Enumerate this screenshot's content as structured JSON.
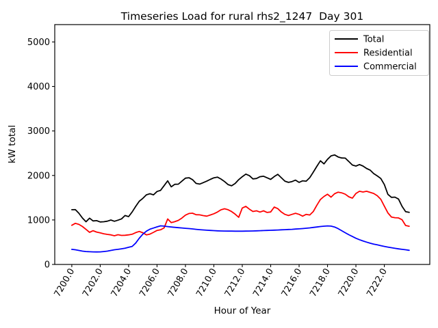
{
  "chart_data": {
    "type": "line",
    "title": "Timeseries Load for rural rhs2_1247  Day 301",
    "xlabel": "Hour of Year",
    "ylabel": "kW total",
    "grid": false,
    "xlim": [
      7198.8,
      7225.2
    ],
    "ylim": [
      0,
      5390
    ],
    "x_tick_values": [
      7200,
      7202,
      7204,
      7206,
      7208,
      7210,
      7212,
      7214,
      7216,
      7218,
      7220,
      7222
    ],
    "x_tick_labels": [
      "7200.0",
      "7202.0",
      "7204.0",
      "7206.0",
      "7208.0",
      "7210.0",
      "7212.0",
      "7214.0",
      "7216.0",
      "7218.0",
      "7220.0",
      "7222.0"
    ],
    "y_tick_values": [
      0,
      1000,
      2000,
      3000,
      4000,
      5000
    ],
    "y_tick_labels": [
      "0",
      "1000",
      "2000",
      "3000",
      "4000",
      "5000"
    ],
    "legend": {
      "position": "upper right",
      "frame_color": "#cccccc"
    },
    "x": [
      7200.0,
      7200.25,
      7200.5,
      7200.75,
      7201.0,
      7201.25,
      7201.5,
      7201.75,
      7202.0,
      7202.25,
      7202.5,
      7202.75,
      7203.0,
      7203.25,
      7203.5,
      7203.75,
      7204.0,
      7204.25,
      7204.5,
      7204.75,
      7205.0,
      7205.25,
      7205.5,
      7205.75,
      7206.0,
      7206.25,
      7206.5,
      7206.75,
      7207.0,
      7207.25,
      7207.5,
      7207.75,
      7208.0,
      7208.25,
      7208.5,
      7208.75,
      7209.0,
      7209.25,
      7209.5,
      7209.75,
      7210.0,
      7210.25,
      7210.5,
      7210.75,
      7211.0,
      7211.25,
      7211.5,
      7211.75,
      7212.0,
      7212.25,
      7212.5,
      7212.75,
      7213.0,
      7213.25,
      7213.5,
      7213.75,
      7214.0,
      7214.25,
      7214.5,
      7214.75,
      7215.0,
      7215.25,
      7215.5,
      7215.75,
      7216.0,
      7216.25,
      7216.5,
      7216.75,
      7217.0,
      7217.25,
      7217.5,
      7217.75,
      7218.0,
      7218.25,
      7218.5,
      7218.75,
      7219.0,
      7219.25,
      7219.5,
      7219.75,
      7220.0,
      7220.25,
      7220.5,
      7220.75,
      7221.0,
      7221.25,
      7221.5,
      7221.75,
      7222.0,
      7222.25,
      7222.5,
      7222.75,
      7223.0,
      7223.25,
      7223.5,
      7223.75
    ],
    "series": [
      {
        "name": "Total",
        "color": "#000000",
        "values": [
          1230,
          1232,
          1150,
          1042,
          960,
          1040,
          978,
          985,
          955,
          960,
          972,
          998,
          970,
          995,
          1025,
          1100,
          1075,
          1180,
          1305,
          1420,
          1485,
          1565,
          1590,
          1565,
          1640,
          1665,
          1770,
          1880,
          1745,
          1802,
          1805,
          1872,
          1940,
          1948,
          1905,
          1822,
          1806,
          1838,
          1872,
          1912,
          1947,
          1962,
          1920,
          1862,
          1795,
          1768,
          1820,
          1905,
          1972,
          2030,
          1995,
          1922,
          1932,
          1972,
          1982,
          1947,
          1912,
          1975,
          2025,
          1948,
          1872,
          1845,
          1862,
          1895,
          1845,
          1880,
          1872,
          1950,
          2075,
          2205,
          2330,
          2260,
          2362,
          2440,
          2462,
          2415,
          2392,
          2390,
          2312,
          2235,
          2212,
          2245,
          2212,
          2158,
          2120,
          2042,
          1990,
          1932,
          1795,
          1575,
          1508,
          1512,
          1470,
          1305,
          1185,
          1170
        ]
      },
      {
        "name": "Residential",
        "color": "#ff0000",
        "values": [
          880,
          925,
          900,
          852,
          788,
          722,
          758,
          728,
          710,
          690,
          676,
          665,
          645,
          668,
          652,
          656,
          665,
          678,
          715,
          742,
          712,
          665,
          682,
          722,
          765,
          778,
          822,
          1022,
          940,
          962,
          990,
          1042,
          1108,
          1145,
          1152,
          1118,
          1115,
          1098,
          1086,
          1112,
          1140,
          1178,
          1228,
          1252,
          1230,
          1188,
          1130,
          1060,
          1268,
          1306,
          1242,
          1190,
          1205,
          1178,
          1205,
          1168,
          1180,
          1290,
          1255,
          1178,
          1126,
          1100,
          1126,
          1150,
          1126,
          1086,
          1126,
          1112,
          1190,
          1332,
          1460,
          1528,
          1578,
          1512,
          1590,
          1625,
          1610,
          1578,
          1520,
          1490,
          1595,
          1645,
          1628,
          1645,
          1620,
          1595,
          1545,
          1465,
          1310,
          1158,
          1065,
          1050,
          1045,
          1005,
          875,
          858
        ]
      },
      {
        "name": "Commercial",
        "color": "#0000ff",
        "values": [
          340,
          330,
          315,
          300,
          290,
          285,
          282,
          281,
          283,
          290,
          300,
          315,
          330,
          340,
          352,
          365,
          385,
          405,
          480,
          590,
          680,
          748,
          792,
          818,
          845,
          868,
          862,
          850,
          842,
          834,
          826,
          820,
          812,
          806,
          798,
          790,
          782,
          776,
          770,
          765,
          760,
          756,
          753,
          751,
          750,
          749,
          748,
          748,
          748,
          749,
          751,
          753,
          755,
          758,
          761,
          764,
          768,
          771,
          774,
          778,
          782,
          786,
          790,
          795,
          800,
          806,
          814,
          822,
          832,
          842,
          852,
          860,
          866,
          862,
          842,
          805,
          758,
          712,
          668,
          628,
          588,
          556,
          528,
          502,
          478,
          458,
          440,
          422,
          406,
          390,
          376,
          362,
          350,
          340,
          330,
          318
        ]
      }
    ]
  }
}
